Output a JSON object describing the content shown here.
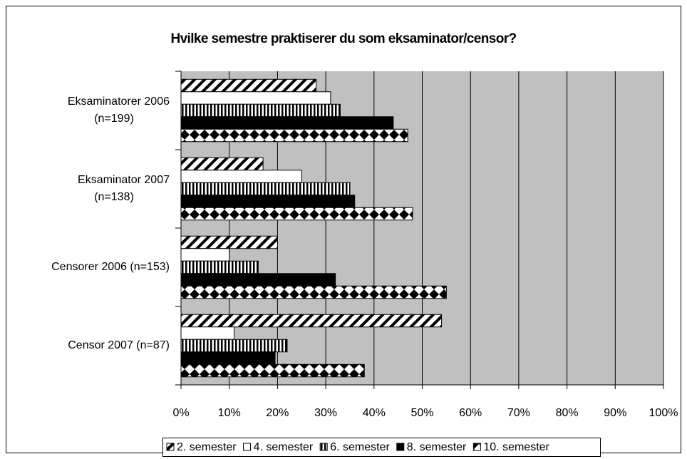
{
  "chart_data": {
    "type": "bar",
    "orientation": "horizontal",
    "title": "Hvilke semestre praktiserer du som eksaminator/censor?",
    "categories": [
      "Eksaminatorer 2006\n(n=199)",
      "Eksaminator 2007\n(n=138)",
      "Censorer 2006 (n=153)",
      "Censor 2007 (n=87)"
    ],
    "series": [
      {
        "name": "2. semester",
        "color": "#000000",
        "pattern": "diagonal",
        "values": [
          28,
          17,
          20,
          54
        ]
      },
      {
        "name": "4. semester",
        "color": "#ffffff",
        "pattern": "none",
        "values": [
          31,
          25,
          10,
          11
        ]
      },
      {
        "name": "6. semester",
        "color": "#000000",
        "pattern": "vertical",
        "values": [
          33,
          35,
          16,
          22
        ]
      },
      {
        "name": "8. semester",
        "color": "#000000",
        "pattern": "none",
        "values": [
          44,
          36,
          32,
          19.5
        ]
      },
      {
        "name": "10. semester",
        "color": "#000000",
        "pattern": "diamond",
        "values": [
          47,
          48,
          55,
          38
        ]
      }
    ],
    "xlim": [
      0,
      100
    ],
    "xticks": [
      {
        "value": 0,
        "label": "0%"
      },
      {
        "value": 10,
        "label": "10%"
      },
      {
        "value": 20,
        "label": "20%"
      },
      {
        "value": 30,
        "label": "30%"
      },
      {
        "value": 40,
        "label": "40%"
      },
      {
        "value": 50,
        "label": "50%"
      },
      {
        "value": 60,
        "label": "60%"
      },
      {
        "value": 70,
        "label": "70%"
      },
      {
        "value": 80,
        "label": "80%"
      },
      {
        "value": 90,
        "label": "90%"
      },
      {
        "value": 100,
        "label": "100%"
      }
    ],
    "grid": true,
    "legend": "bottom",
    "plot_background": "#c0c0c0"
  }
}
